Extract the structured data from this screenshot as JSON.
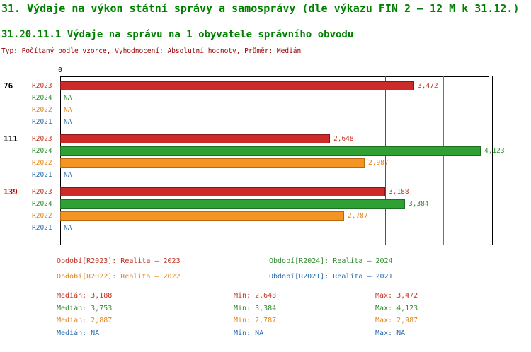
{
  "header": {
    "title": "31. Výdaje na výkon státní správy a samosprávy (dle výkazu FIN 2 – 12 M k 31.12.)",
    "subtitle": "31.20.11.1 Výdaje na správu na 1 obyvatele správního obvodu",
    "meta": "Typ: Počítaný podle vzorce, Vyhodnocení: Absolutní hodnoty, Průměr: Medián"
  },
  "colors": {
    "title": "#008000",
    "meta": "#990000",
    "axis": "#000000",
    "series": {
      "R2023": {
        "fill": "#cd2a2a",
        "border": "#8b1414",
        "text": "#c03522",
        "line": "#b62a1f"
      },
      "R2024": {
        "fill": "#2fa033",
        "border": "#1d6e20",
        "text": "#2e8b2e",
        "line": "#2fa033"
      },
      "R2022": {
        "fill": "#f49422",
        "border": "#b56a10",
        "text": "#e0861c",
        "line": "#e0861c"
      },
      "R2021": {
        "fill": "#2a6db0",
        "border": "#1d4d80",
        "text": "#2a6db0",
        "line": "#2a6db0"
      }
    }
  },
  "chart_data": {
    "type": "bar",
    "orientation": "horizontal",
    "title": "31.20.11.1 Výdaje na správu na 1 obyvatele správního obvodu",
    "x_axis": {
      "min": 0,
      "max": 4200,
      "zero_label": "0"
    },
    "series_order": [
      "R2023",
      "R2024",
      "R2022",
      "R2021"
    ],
    "groups": [
      {
        "label": "76",
        "label_color": "#000000",
        "rows": [
          {
            "series": "R2023",
            "value": 3472,
            "display": "3,472"
          },
          {
            "series": "R2024",
            "value": null,
            "display": "NA"
          },
          {
            "series": "R2022",
            "value": null,
            "display": "NA"
          },
          {
            "series": "R2021",
            "value": null,
            "display": "NA"
          }
        ]
      },
      {
        "label": "111",
        "label_color": "#000000",
        "rows": [
          {
            "series": "R2023",
            "value": 2648,
            "display": "2,648"
          },
          {
            "series": "R2024",
            "value": 4123,
            "display": "4,123"
          },
          {
            "series": "R2022",
            "value": 2987,
            "display": "2,987"
          },
          {
            "series": "R2021",
            "value": null,
            "display": "NA"
          }
        ]
      },
      {
        "label": "139",
        "label_color": "#cc0000",
        "rows": [
          {
            "series": "R2023",
            "value": 3188,
            "display": "3,188"
          },
          {
            "series": "R2024",
            "value": 3384,
            "display": "3,384"
          },
          {
            "series": "R2022",
            "value": 2787,
            "display": "2,787"
          },
          {
            "series": "R2021",
            "value": null,
            "display": "NA"
          }
        ]
      }
    ],
    "median_lines": [
      {
        "series": "R2022",
        "value": 2887
      },
      {
        "series": "R2023",
        "value": 3188
      },
      {
        "series": "R2024",
        "value": 3753
      }
    ]
  },
  "legend": {
    "items": [
      {
        "series": "R2023",
        "text": "Období[R2023]: Realita – 2023"
      },
      {
        "series": "R2024",
        "text": "Období[R2024]: Realita – 2024"
      },
      {
        "series": "R2022",
        "text": "Období[R2022]: Realita – 2022"
      },
      {
        "series": "R2021",
        "text": "Období[R2021]: Realita – 2021"
      }
    ]
  },
  "stats": {
    "labels": {
      "median": "Medián",
      "min": "Min",
      "max": "Max"
    },
    "rows": [
      {
        "series": "R2023",
        "median": "3,188",
        "min": "2,648",
        "max": "3,472"
      },
      {
        "series": "R2024",
        "median": "3,753",
        "min": "3,384",
        "max": "4,123"
      },
      {
        "series": "R2022",
        "median": "2,887",
        "min": "2,787",
        "max": "2,987"
      },
      {
        "series": "R2021",
        "median": "NA",
        "min": "NA",
        "max": "NA"
      }
    ]
  }
}
